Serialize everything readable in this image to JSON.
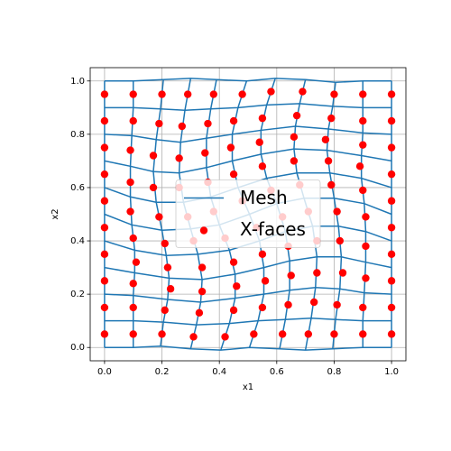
{
  "chart_data": {
    "type": "mesh-scatter",
    "xlabel": "x1",
    "ylabel": "x2",
    "xlim": [
      -0.05,
      1.05
    ],
    "ylim": [
      -0.05,
      1.05
    ],
    "xticks": [
      {
        "value": 0,
        "label": "0.0"
      },
      {
        "value": 0.2,
        "label": "0.2"
      },
      {
        "value": 0.4,
        "label": "0.4"
      },
      {
        "value": 0.6,
        "label": "0.6"
      },
      {
        "value": 0.8,
        "label": "0.8"
      },
      {
        "value": 1,
        "label": "1.0"
      }
    ],
    "yticks": [
      {
        "value": 0,
        "label": "0.0"
      },
      {
        "value": 0.2,
        "label": "0.2"
      },
      {
        "value": 0.4,
        "label": "0.4"
      },
      {
        "value": 0.6,
        "label": "0.6"
      },
      {
        "value": 0.8,
        "label": "0.8"
      },
      {
        "value": 1,
        "label": "1.0"
      }
    ],
    "grid": true,
    "legend": "center",
    "columns": 11,
    "series": [
      {
        "name": "Mesh",
        "color": "#1f77b4"
      },
      {
        "name": "X-faces",
        "color": "red",
        "x": [
          0,
          0.1,
          0.2,
          0.31,
          0.42,
          0.52,
          0.62,
          0.71,
          0.8,
          0.9,
          1.0,
          0,
          0.1,
          0.21,
          0.33,
          0.45,
          0.55,
          0.64,
          0.73,
          0.81,
          0.9,
          1.0,
          0,
          0.1,
          0.23,
          0.34,
          0.46,
          0.56,
          0.65,
          0.74,
          0.83,
          0.91,
          1.0,
          0,
          0.11,
          0.22,
          0.34,
          0.45,
          0.55,
          0.64,
          0.74,
          0.82,
          0.91,
          1.0,
          0,
          0.1,
          0.21,
          0.31,
          0.42,
          0.53,
          0.62,
          0.71,
          0.81,
          0.91,
          1.0,
          0,
          0.09,
          0.19,
          0.29,
          0.38,
          0.48,
          0.58,
          0.68,
          0.79,
          0.9,
          1.0,
          0,
          0.09,
          0.17,
          0.26,
          0.36,
          0.45,
          0.55,
          0.66,
          0.78,
          0.89,
          1.0,
          0,
          0.09,
          0.17,
          0.26,
          0.35,
          0.44,
          0.54,
          0.66,
          0.77,
          0.9,
          1.0,
          0,
          0.1,
          0.19,
          0.27,
          0.36,
          0.45,
          0.55,
          0.67,
          0.79,
          0.9,
          1.0,
          0,
          0.1,
          0.2,
          0.29,
          0.38,
          0.48,
          0.58,
          0.69,
          0.8,
          0.9,
          1.0
        ],
        "y": [
          0.05,
          0.05,
          0.05,
          0.04,
          0.04,
          0.05,
          0.05,
          0.05,
          0.05,
          0.05,
          0.05,
          0.15,
          0.15,
          0.14,
          0.13,
          0.14,
          0.15,
          0.16,
          0.17,
          0.16,
          0.15,
          0.15,
          0.25,
          0.24,
          0.22,
          0.21,
          0.23,
          0.25,
          0.27,
          0.28,
          0.28,
          0.26,
          0.25,
          0.35,
          0.32,
          0.3,
          0.3,
          0.32,
          0.35,
          0.38,
          0.4,
          0.4,
          0.38,
          0.35,
          0.45,
          0.41,
          0.39,
          0.4,
          0.41,
          0.45,
          0.49,
          0.51,
          0.51,
          0.49,
          0.45,
          0.55,
          0.51,
          0.49,
          0.49,
          0.51,
          0.55,
          0.59,
          0.61,
          0.61,
          0.59,
          0.55,
          0.65,
          0.62,
          0.6,
          0.6,
          0.62,
          0.65,
          0.68,
          0.7,
          0.7,
          0.68,
          0.65,
          0.75,
          0.74,
          0.72,
          0.71,
          0.73,
          0.75,
          0.77,
          0.79,
          0.78,
          0.76,
          0.75,
          0.85,
          0.85,
          0.84,
          0.83,
          0.84,
          0.85,
          0.86,
          0.87,
          0.86,
          0.85,
          0.85,
          0.95,
          0.95,
          0.95,
          0.95,
          0.95,
          0.95,
          0.96,
          0.96,
          0.95,
          0.95,
          0.95
        ]
      }
    ]
  }
}
